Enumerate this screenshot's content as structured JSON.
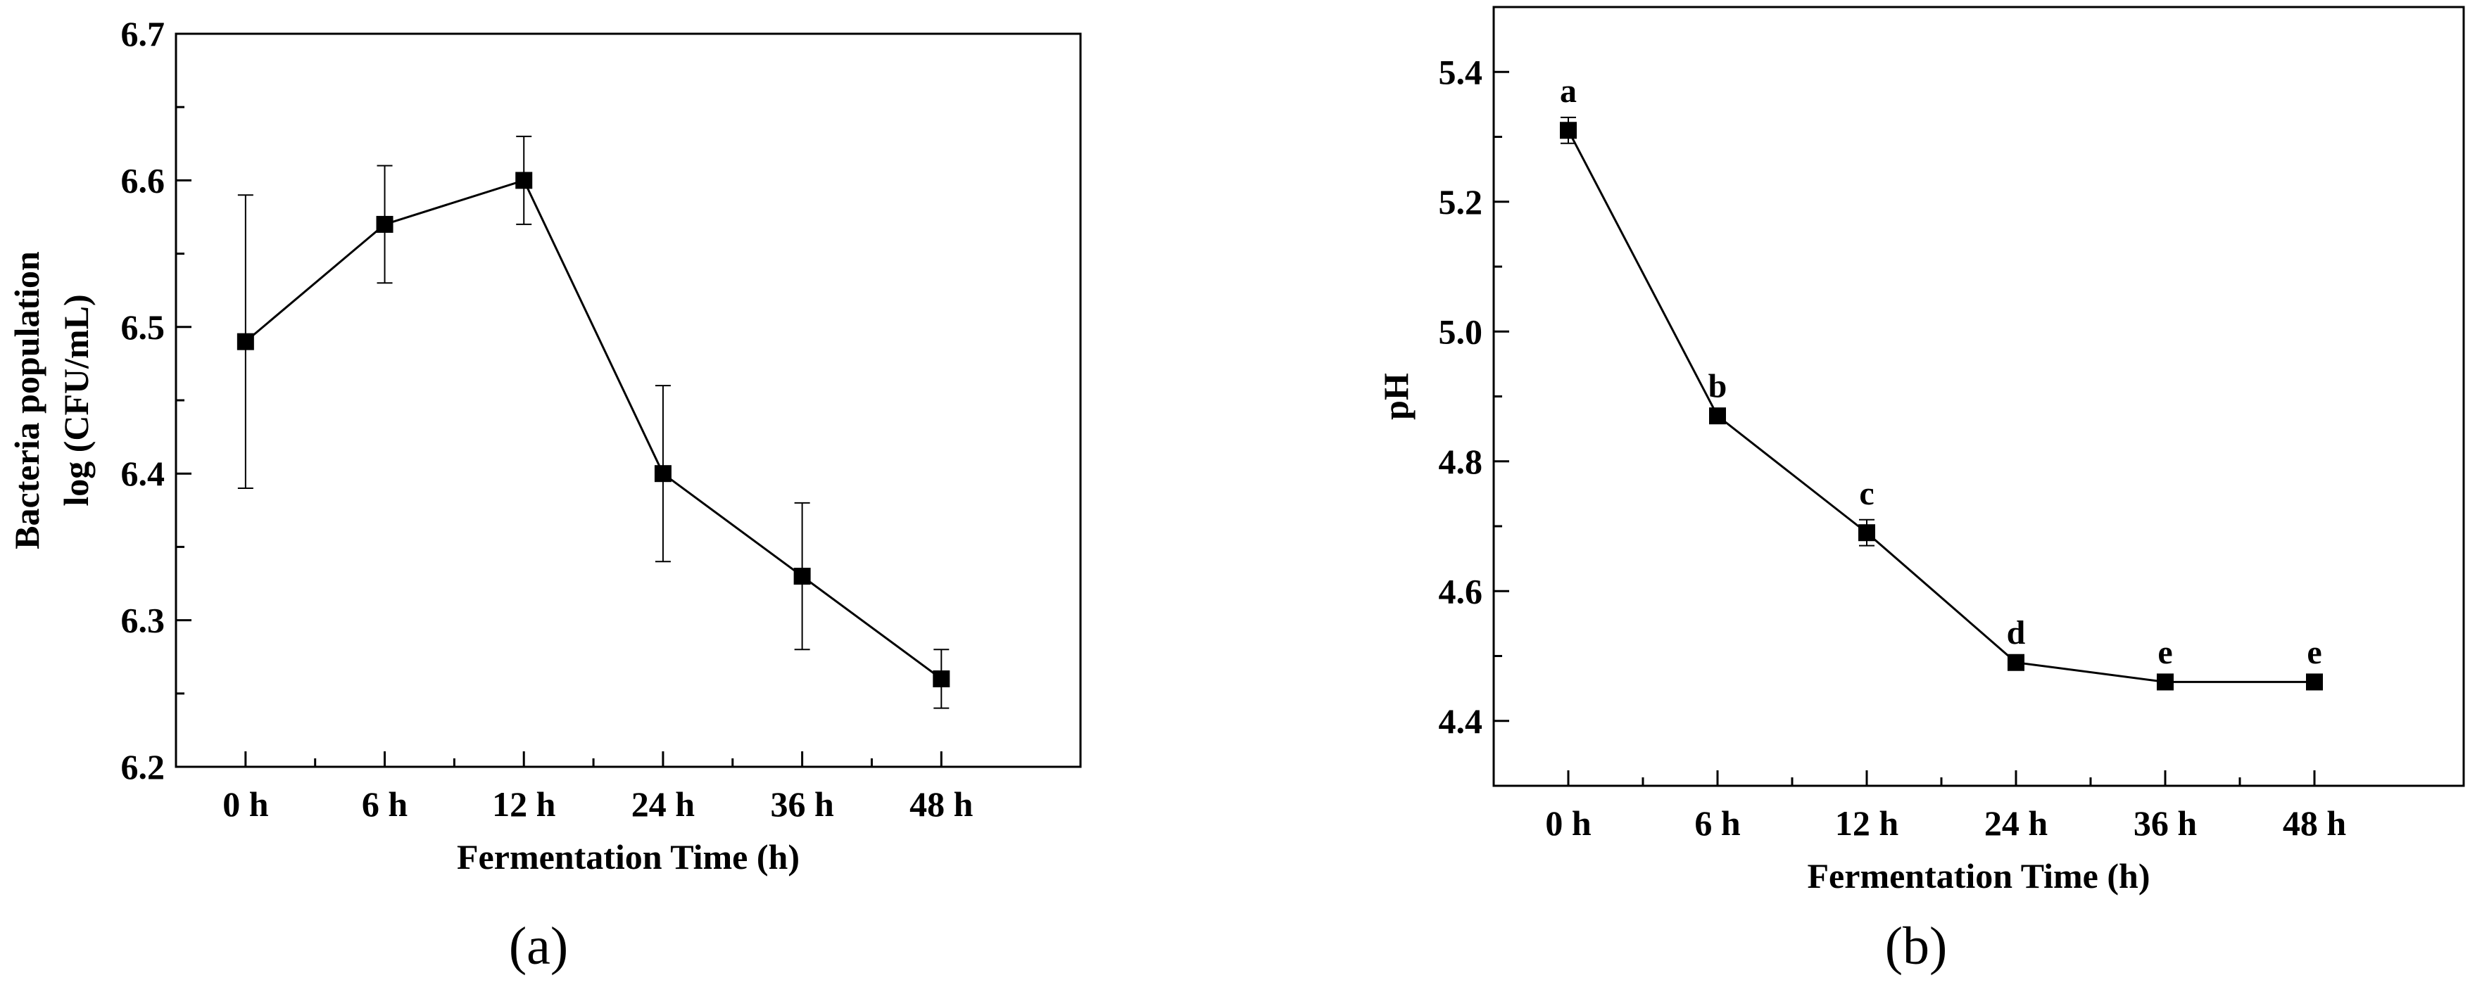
{
  "chart_data": [
    {
      "type": "line",
      "panel_label": "(a)",
      "title": "",
      "xlabel": "Fermentation Time (h)",
      "ylabel_lines": [
        "Bacteria population",
        "log (CFU/mL)"
      ],
      "categories": [
        "0 h",
        "6 h",
        "12 h",
        "24 h",
        "36 h",
        "48 h"
      ],
      "values": [
        6.49,
        6.57,
        6.6,
        6.4,
        6.33,
        6.26
      ],
      "error": [
        0.1,
        0.04,
        0.03,
        0.06,
        0.05,
        0.02
      ],
      "ylim": [
        6.2,
        6.7
      ],
      "yticks": [
        6.2,
        6.3,
        6.4,
        6.5,
        6.6,
        6.7
      ],
      "marker": "square",
      "color": "#000000",
      "grid": false
    },
    {
      "type": "line",
      "panel_label": "(b)",
      "title": "",
      "xlabel": "Fermentation Time (h)",
      "ylabel_lines": [
        "pH"
      ],
      "categories": [
        "0 h",
        "6 h",
        "12 h",
        "24 h",
        "36 h",
        "48 h"
      ],
      "values": [
        5.31,
        4.87,
        4.69,
        4.49,
        4.46,
        4.46
      ],
      "error": [
        0.02,
        0.005,
        0.02,
        0.005,
        0.005,
        0.005
      ],
      "letters": [
        "a",
        "b",
        "c",
        "d",
        "e",
        "e"
      ],
      "ylim": [
        4.3,
        5.5
      ],
      "yticks": [
        "4.4",
        "4.6",
        "4.8",
        "5.0",
        "5.2",
        "5.4"
      ],
      "marker": "square",
      "color": "#000000",
      "grid": false
    }
  ]
}
